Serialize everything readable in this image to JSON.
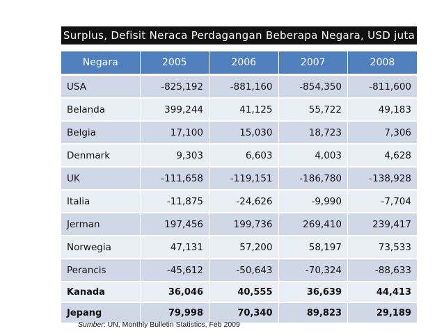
{
  "title": "Surplus, Defisit Neraca Perdagangan Beberapa Negara, USD juta",
  "table": {
    "headers": [
      "Negara",
      "2005",
      "2006",
      "2007",
      "2008"
    ],
    "rows": [
      [
        "USA",
        "-825,192",
        "-881,160",
        "-854,350",
        "-811,600"
      ],
      [
        "Belanda",
        "399,244",
        "41,125",
        "55,722",
        "49,183"
      ],
      [
        "Belgia",
        "17,100",
        "15,030",
        "18,723",
        "7,306"
      ],
      [
        "Denmark",
        "9,303",
        "6,603",
        "4,003",
        "4,628"
      ],
      [
        "UK",
        "-111,658",
        "-119,151",
        "-186,780",
        "-138,928"
      ],
      [
        "Italia",
        "-11,875",
        "-24,626",
        "-9,990",
        "-7,704"
      ],
      [
        "Jerman",
        "197,456",
        "199,736",
        "269,410",
        "239,417"
      ],
      [
        "Norwegia",
        "47,131",
        "57,200",
        "58,197",
        "73,533"
      ],
      [
        "Perancis",
        "-45,612",
        "-50,643",
        "-70,324",
        "-88,633"
      ],
      [
        "Kanada",
        "36,046",
        "40,555",
        "36,639",
        "44,413"
      ],
      [
        "Jepang",
        "79,998",
        "70,340",
        "89,823",
        "29,189"
      ]
    ]
  },
  "source": {
    "label": "Sumber",
    "text": ": UN, Monthly Bulletin Statistics, Feb 2009"
  },
  "colors": {
    "header_bg": "#4f7fbd",
    "row_dark": "#d0d8e8",
    "row_light": "#e9edf4",
    "title_bg": "#111111"
  }
}
